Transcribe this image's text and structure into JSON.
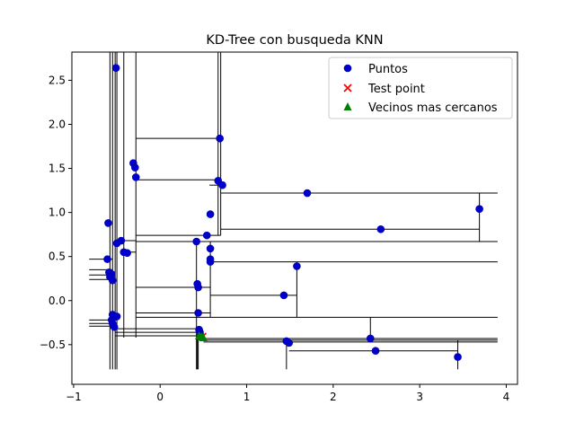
{
  "chart_data": {
    "type": "scatter",
    "title": "KD-Tree con busqueda KNN",
    "xlabel": "",
    "ylabel": "",
    "xlim": [
      -1.02,
      4.13
    ],
    "ylim": [
      -0.95,
      2.82
    ],
    "xticks": [
      -1,
      0,
      1,
      2,
      3,
      4
    ],
    "xtick_labels": [
      "−1",
      "0",
      "1",
      "2",
      "3",
      "4"
    ],
    "yticks": [
      -0.5,
      0.0,
      0.5,
      1.0,
      1.5,
      2.0,
      2.5
    ],
    "ytick_labels": [
      "−0.5",
      "0.0",
      "0.5",
      "1.0",
      "1.5",
      "2.0",
      "2.5"
    ],
    "grid": false,
    "legend_position": "top-right",
    "legend": [
      {
        "label": "Puntos",
        "marker": "circle",
        "color": "#0000ff"
      },
      {
        "label": "Test point",
        "marker": "x",
        "color": "#ff0000"
      },
      {
        "label": "Vecinos mas cercanos",
        "marker": "triangle",
        "color": "#008000"
      }
    ],
    "colors": {
      "points": "#0000cc",
      "test_point": "#ff0000",
      "neighbors": "#008000",
      "partition_lines": "#000000"
    },
    "series": [
      {
        "name": "Puntos",
        "points": [
          [
            -0.51,
            2.64
          ],
          [
            0.69,
            1.84
          ],
          [
            -0.31,
            1.56
          ],
          [
            -0.29,
            1.51
          ],
          [
            -0.28,
            1.4
          ],
          [
            0.67,
            1.36
          ],
          [
            0.72,
            1.31
          ],
          [
            1.7,
            1.22
          ],
          [
            3.69,
            1.04
          ],
          [
            0.58,
            0.98
          ],
          [
            -0.6,
            0.88
          ],
          [
            2.55,
            0.81
          ],
          [
            0.54,
            0.74
          ],
          [
            -0.45,
            0.68
          ],
          [
            0.42,
            0.67
          ],
          [
            -0.5,
            0.65
          ],
          [
            -0.42,
            0.55
          ],
          [
            -0.38,
            0.54
          ],
          [
            -0.61,
            0.47
          ],
          [
            0.58,
            0.59
          ],
          [
            0.58,
            0.47
          ],
          [
            0.58,
            0.44
          ],
          [
            1.58,
            0.39
          ],
          [
            -0.59,
            0.32
          ],
          [
            -0.56,
            0.3
          ],
          [
            -0.58,
            0.27
          ],
          [
            -0.55,
            0.23
          ],
          [
            0.43,
            0.19
          ],
          [
            0.44,
            0.15
          ],
          [
            1.43,
            0.06
          ],
          [
            0.44,
            -0.14
          ],
          [
            -0.55,
            -0.16
          ],
          [
            -0.5,
            -0.18
          ],
          [
            -0.56,
            -0.22
          ],
          [
            -0.55,
            -0.26
          ],
          [
            -0.53,
            -0.3
          ],
          [
            0.45,
            -0.33
          ],
          [
            0.46,
            -0.36
          ],
          [
            0.47,
            -0.4
          ],
          [
            2.43,
            -0.43
          ],
          [
            1.46,
            -0.46
          ],
          [
            1.49,
            -0.48
          ],
          [
            2.49,
            -0.57
          ],
          [
            3.44,
            -0.64
          ]
        ]
      },
      {
        "name": "Test point",
        "points": [
          [
            0.49,
            -0.41
          ]
        ]
      },
      {
        "name": "Vecinos mas cercanos",
        "points": [
          [
            0.45,
            -0.4
          ],
          [
            0.48,
            -0.41
          ],
          [
            0.5,
            -0.42
          ]
        ]
      }
    ],
    "partition_segments": [
      [
        [
          -0.55,
          -0.78
        ],
        [
          -0.55,
          2.82
        ]
      ],
      [
        [
          -0.52,
          -0.78
        ],
        [
          -0.52,
          2.82
        ]
      ],
      [
        [
          -0.58,
          -0.78
        ],
        [
          -0.58,
          2.82
        ]
      ],
      [
        [
          -0.5,
          -0.78
        ],
        [
          -0.5,
          2.82
        ]
      ],
      [
        [
          -0.42,
          -0.42
        ],
        [
          -0.42,
          2.82
        ]
      ],
      [
        [
          -0.28,
          -0.42
        ],
        [
          -0.28,
          2.82
        ]
      ],
      [
        [
          0.67,
          0.74
        ],
        [
          0.67,
          2.82
        ]
      ],
      [
        [
          0.7,
          0.74
        ],
        [
          0.7,
          2.82
        ]
      ],
      [
        [
          -0.28,
          1.84
        ],
        [
          0.68,
          1.84
        ]
      ],
      [
        [
          -0.28,
          1.37
        ],
        [
          0.67,
          1.37
        ]
      ],
      [
        [
          0.57,
          1.31
        ],
        [
          0.7,
          1.31
        ]
      ],
      [
        [
          0.7,
          1.22
        ],
        [
          3.9,
          1.22
        ]
      ],
      [
        [
          3.69,
          0.67
        ],
        [
          3.69,
          1.22
        ]
      ],
      [
        [
          0.7,
          0.81
        ],
        [
          3.69,
          0.81
        ]
      ],
      [
        [
          0.54,
          0.67
        ],
        [
          3.9,
          0.67
        ]
      ],
      [
        [
          -0.28,
          0.74
        ],
        [
          0.7,
          0.74
        ]
      ],
      [
        [
          -0.28,
          0.67
        ],
        [
          0.54,
          0.67
        ]
      ],
      [
        [
          0.58,
          0.44
        ],
        [
          3.9,
          0.44
        ]
      ],
      [
        [
          -0.38,
          0.55
        ],
        [
          -0.28,
          0.55
        ]
      ],
      [
        [
          -0.45,
          0.68
        ],
        [
          -0.28,
          0.68
        ]
      ],
      [
        [
          -0.82,
          0.47
        ],
        [
          -0.55,
          0.47
        ]
      ],
      [
        [
          -0.82,
          0.35
        ],
        [
          -0.55,
          0.35
        ]
      ],
      [
        [
          -0.82,
          0.29
        ],
        [
          -0.55,
          0.29
        ]
      ],
      [
        [
          -0.82,
          0.24
        ],
        [
          -0.55,
          0.24
        ]
      ],
      [
        [
          1.58,
          -0.19
        ],
        [
          1.58,
          0.44
        ]
      ],
      [
        [
          0.58,
          0.06
        ],
        [
          1.58,
          0.06
        ]
      ],
      [
        [
          -0.28,
          0.15
        ],
        [
          0.58,
          0.15
        ]
      ],
      [
        [
          -0.28,
          -0.14
        ],
        [
          0.58,
          -0.14
        ]
      ],
      [
        [
          0.42,
          -0.78
        ],
        [
          0.42,
          0.67
        ]
      ],
      [
        [
          0.58,
          -0.19
        ],
        [
          0.58,
          0.67
        ]
      ],
      [
        [
          -0.28,
          -0.19
        ],
        [
          3.9,
          -0.19
        ]
      ],
      [
        [
          -0.82,
          -0.22
        ],
        [
          -0.5,
          -0.22
        ]
      ],
      [
        [
          -0.82,
          -0.26
        ],
        [
          -0.5,
          -0.26
        ]
      ],
      [
        [
          -0.82,
          -0.29
        ],
        [
          -0.5,
          -0.29
        ]
      ],
      [
        [
          -0.52,
          -0.32
        ],
        [
          0.45,
          -0.32
        ]
      ],
      [
        [
          -0.52,
          -0.36
        ],
        [
          0.45,
          -0.36
        ]
      ],
      [
        [
          -0.52,
          -0.4
        ],
        [
          0.45,
          -0.4
        ]
      ],
      [
        [
          0.45,
          -0.43
        ],
        [
          3.9,
          -0.43
        ]
      ],
      [
        [
          0.49,
          -0.45
        ],
        [
          3.9,
          -0.45
        ]
      ],
      [
        [
          0.5,
          -0.47
        ],
        [
          3.9,
          -0.47
        ]
      ],
      [
        [
          2.43,
          -0.47
        ],
        [
          2.43,
          -0.19
        ]
      ],
      [
        [
          1.46,
          -0.78
        ],
        [
          1.46,
          -0.45
        ]
      ],
      [
        [
          1.49,
          -0.57
        ],
        [
          3.44,
          -0.57
        ]
      ],
      [
        [
          3.44,
          -0.78
        ],
        [
          3.44,
          -0.45
        ]
      ],
      [
        [
          0.44,
          -0.78
        ],
        [
          0.44,
          -0.32
        ]
      ],
      [
        [
          0.43,
          -0.78
        ],
        [
          0.43,
          -0.32
        ]
      ]
    ]
  }
}
